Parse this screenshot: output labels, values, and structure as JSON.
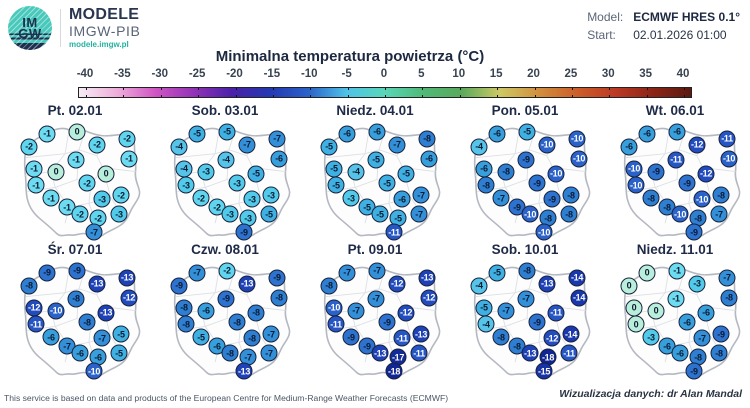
{
  "header": {
    "logo": {
      "imgw_top": "IM",
      "imgw_bottom": "GW",
      "brand_line1": "MODELE",
      "brand_line2": "IMGW-PIB",
      "brand_url": "modele.imgw.pl"
    },
    "model_label": "Model:",
    "model_value": "ECMWF HRES 0.1°",
    "start_label": "Start:",
    "start_value": "02.01.2026 01:00"
  },
  "title": "Minimalna temperatura powietrza (°C)",
  "footer": {
    "left": "This service is based on data and products of the European Centre for Medium-Range Weather Forecasts (ECMWF)",
    "right": "Wizualizacja danych: dr Alan Mandal"
  },
  "chart_data": {
    "type": "heatmap",
    "subtype": "map-grid-point-temperatures",
    "title": "Minimalna temperatura powietrza (°C)",
    "units": "°C",
    "colorbar": {
      "ticks": [
        -40,
        -35,
        -30,
        -25,
        -20,
        -15,
        -10,
        -5,
        0,
        5,
        10,
        15,
        20,
        25,
        30,
        35,
        40
      ],
      "gradient_stops": [
        "#f7ecf5",
        "#eeadda",
        "#d055c4",
        "#9232b8",
        "#4a21a8",
        "#2338b2",
        "#2a62c9",
        "#4fc3e8",
        "#59d6b8",
        "#4fba77",
        "#5aa95c",
        "#cdc964",
        "#d2903e",
        "#cc5f2a",
        "#bd3a24",
        "#8c2517",
        "#5c190f"
      ]
    },
    "stations_xy": [
      [
        42,
        14
      ],
      [
        72,
        12
      ],
      [
        92,
        25
      ],
      [
        122,
        19
      ],
      [
        24,
        27
      ],
      [
        71,
        40
      ],
      [
        124,
        39
      ],
      [
        29,
        49
      ],
      [
        51,
        52
      ],
      [
        101,
        54
      ],
      [
        31,
        66
      ],
      [
        82,
        64
      ],
      [
        46,
        79
      ],
      [
        97,
        80
      ],
      [
        116,
        76
      ],
      [
        62,
        88
      ],
      [
        75,
        95
      ],
      [
        93,
        99
      ],
      [
        114,
        95
      ],
      [
        89,
        113
      ]
    ],
    "maps": [
      {
        "label": "Pt. 02.01",
        "values": [
          -1,
          0,
          -2,
          -2,
          -2,
          -1,
          -1,
          -1,
          0,
          0,
          -1,
          -2,
          -1,
          -3,
          -2,
          -1,
          -2,
          -2,
          -3,
          -7
        ]
      },
      {
        "label": "Sob. 03.01",
        "values": [
          -5,
          -5,
          -7,
          -7,
          -4,
          -4,
          -6,
          -4,
          -3,
          -5,
          -3,
          -3,
          -2,
          -3,
          -3,
          -2,
          -3,
          -3,
          -5,
          -9
        ]
      },
      {
        "label": "Niedz. 04.01",
        "values": [
          -6,
          -6,
          -7,
          -8,
          -5,
          -5,
          -6,
          -5,
          -4,
          -5,
          -5,
          -5,
          -3,
          -6,
          -7,
          -5,
          -5,
          -5,
          -7,
          -11
        ]
      },
      {
        "label": "Pon. 05.01",
        "values": [
          -6,
          -5,
          -10,
          -10,
          -4,
          -9,
          -10,
          -6,
          -8,
          -10,
          -8,
          -9,
          -7,
          -9,
          -8,
          -9,
          -10,
          -8,
          -8,
          -10
        ]
      },
      {
        "label": "Wt. 06.01",
        "values": [
          -6,
          -6,
          -12,
          -11,
          -6,
          -11,
          -10,
          -10,
          -9,
          -12,
          -10,
          -9,
          -8,
          -10,
          -8,
          -8,
          -10,
          -8,
          -7,
          -9
        ]
      },
      {
        "label": "Śr. 07.01",
        "values": [
          -9,
          -9,
          -13,
          -13,
          -8,
          -8,
          -12,
          -12,
          -10,
          -13,
          -11,
          -8,
          -6,
          -7,
          -5,
          -7,
          -6,
          -6,
          -5,
          -10
        ]
      },
      {
        "label": "Czw. 08.01",
        "values": [
          -7,
          -2,
          -13,
          -9,
          -9,
          -9,
          -8,
          -8,
          -6,
          -8,
          -8,
          -8,
          -5,
          -8,
          -7,
          -6,
          -8,
          -7,
          -7,
          -13
        ]
      },
      {
        "label": "Pt. 09.01",
        "values": [
          -7,
          -7,
          -12,
          -13,
          -8,
          -7,
          -12,
          -10,
          -7,
          -12,
          -11,
          -9,
          -9,
          -11,
          -13,
          -9,
          -13,
          -17,
          -11,
          -18
        ]
      },
      {
        "label": "Sob. 10.01",
        "values": [
          -5,
          -8,
          -13,
          -14,
          -4,
          -7,
          -14,
          -5,
          -7,
          -11,
          -4,
          -9,
          -8,
          -12,
          -14,
          -8,
          -13,
          -18,
          -11,
          -15
        ]
      },
      {
        "label": "Niedz. 11.01",
        "values": [
          0,
          -1,
          -3,
          -7,
          0,
          -1,
          -8,
          0,
          0,
          -6,
          0,
          -6,
          -3,
          -7,
          -9,
          -6,
          -6,
          -8,
          -8,
          -9
        ]
      }
    ],
    "value_colors": {
      "0": "#b9eeda",
      "-1": "#6edcf0",
      "-2": "#60d5ee",
      "-3": "#52cbea",
      "-4": "#55c4e8",
      "-5": "#3fb0e2",
      "-6": "#379fdc",
      "-7": "#3390d8",
      "-8": "#2e7fd2",
      "-9": "#2c72ce",
      "-10": "#2a62c9",
      "-11": "#2656c4",
      "-12": "#224bbe",
      "-13": "#1e41b7",
      "-14": "#1a38ae",
      "-15": "#1733a6",
      "-17": "#132b99",
      "-18": "#102692"
    },
    "white_text_threshold": -10
  }
}
